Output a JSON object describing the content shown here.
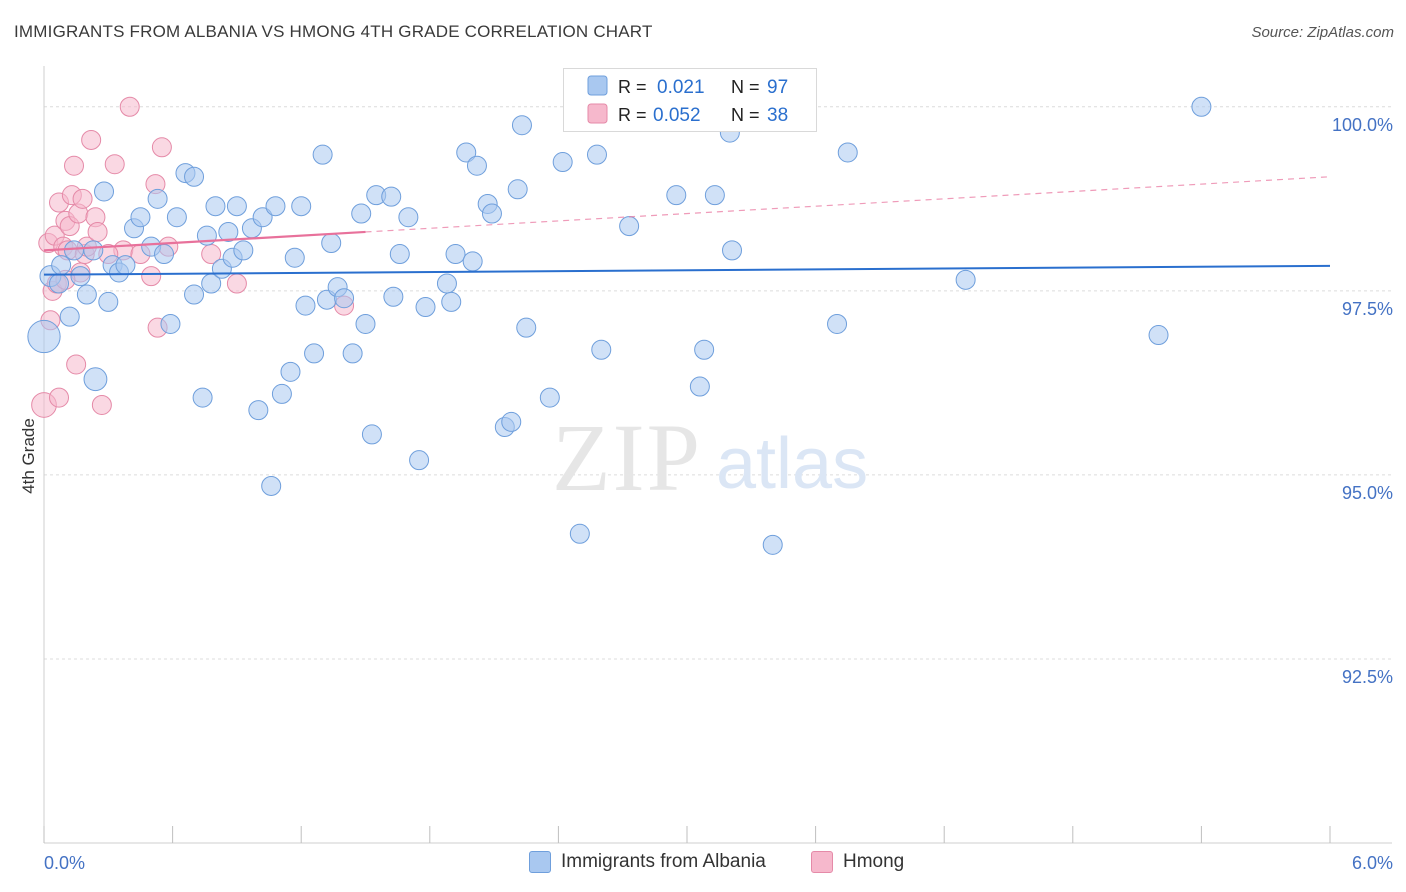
{
  "title": "IMMIGRANTS FROM ALBANIA VS HMONG 4TH GRADE CORRELATION CHART",
  "source": "Source: ZipAtlas.com",
  "watermark": {
    "zip": "ZIP",
    "atlas": "atlas"
  },
  "legend": {
    "r_label": "R =",
    "n_label": "N =",
    "series": [
      {
        "name": "Immigrants from Albania",
        "r": "0.021",
        "n": "97",
        "fill": "#a9c8f0",
        "stroke": "#6f9fdc"
      },
      {
        "name": "Hmong",
        "r": "0.052",
        "n": "38",
        "fill": "#f6b8cc",
        "stroke": "#e58aa8"
      }
    ]
  },
  "colors": {
    "blue_line": "#2a6fce",
    "pink_line": "#e8719b",
    "tick_label": "#4472c4",
    "grid": "#dcdcdc"
  },
  "chart_data": {
    "type": "scatter",
    "title": "IMMIGRANTS FROM ALBANIA VS HMONG 4TH GRADE CORRELATION CHART",
    "xlabel": "",
    "ylabel": "4th Grade",
    "xlim": [
      0.0,
      6.0
    ],
    "ylim": [
      90.0,
      100.5
    ],
    "x_tick_labels": {
      "left": "0.0%",
      "right": "6.0%"
    },
    "y_ticks": [
      92.5,
      95.0,
      97.5,
      100.0
    ],
    "y_tick_labels": [
      "92.5%",
      "95.0%",
      "97.5%",
      "100.0%"
    ],
    "series": [
      {
        "name": "Immigrants from Albania",
        "trend": {
          "x0": 0.0,
          "y0": 97.72,
          "x1": 6.0,
          "y1": 97.84,
          "solid_to": 6.0
        },
        "points": [
          [
            0.0,
            96.88,
            1.7
          ],
          [
            0.03,
            97.7,
            1.1
          ],
          [
            0.07,
            97.6,
            1.0
          ],
          [
            0.08,
            97.85,
            1.0
          ],
          [
            0.12,
            97.15,
            1.0
          ],
          [
            0.14,
            98.05,
            1.0
          ],
          [
            0.17,
            97.7,
            1.0
          ],
          [
            0.2,
            97.45,
            1.0
          ],
          [
            0.23,
            98.05,
            1.0
          ],
          [
            0.24,
            96.3,
            1.2
          ],
          [
            0.28,
            98.85,
            1.0
          ],
          [
            0.3,
            97.35,
            1.0
          ],
          [
            0.32,
            97.85,
            1.0
          ],
          [
            0.35,
            97.75,
            1.0
          ],
          [
            0.38,
            97.85,
            1.0
          ],
          [
            0.42,
            98.35,
            1.0
          ],
          [
            0.45,
            98.5,
            1.0
          ],
          [
            0.5,
            98.1,
            1.0
          ],
          [
            0.53,
            98.75,
            1.0
          ],
          [
            0.56,
            98.0,
            1.0
          ],
          [
            0.59,
            97.05,
            1.0
          ],
          [
            0.62,
            98.5,
            1.0
          ],
          [
            0.66,
            99.1,
            1.0
          ],
          [
            0.7,
            99.05,
            1.0
          ],
          [
            0.7,
            97.45,
            1.0
          ],
          [
            0.74,
            96.05,
            1.0
          ],
          [
            0.76,
            98.25,
            1.0
          ],
          [
            0.78,
            97.6,
            1.0
          ],
          [
            0.8,
            98.65,
            1.0
          ],
          [
            0.83,
            97.8,
            1.0
          ],
          [
            0.86,
            98.3,
            1.0
          ],
          [
            0.88,
            97.95,
            1.0
          ],
          [
            0.9,
            98.65,
            1.0
          ],
          [
            0.93,
            98.05,
            1.0
          ],
          [
            0.97,
            98.35,
            1.0
          ],
          [
            1.0,
            95.88,
            1.0
          ],
          [
            1.02,
            98.5,
            1.0
          ],
          [
            1.06,
            94.85,
            1.0
          ],
          [
            1.08,
            98.65,
            1.0
          ],
          [
            1.11,
            96.1,
            1.0
          ],
          [
            1.15,
            96.4,
            1.0
          ],
          [
            1.17,
            97.95,
            1.0
          ],
          [
            1.2,
            98.65,
            1.0
          ],
          [
            1.22,
            97.3,
            1.0
          ],
          [
            1.26,
            96.65,
            1.0
          ],
          [
            1.3,
            99.35,
            1.0
          ],
          [
            1.32,
            97.38,
            1.0
          ],
          [
            1.34,
            98.15,
            1.0
          ],
          [
            1.37,
            97.55,
            1.0
          ],
          [
            1.4,
            97.4,
            1.0
          ],
          [
            1.44,
            96.65,
            1.0
          ],
          [
            1.48,
            98.55,
            1.0
          ],
          [
            1.5,
            97.05,
            1.0
          ],
          [
            1.53,
            95.55,
            1.0
          ],
          [
            1.55,
            98.8,
            1.0
          ],
          [
            1.62,
            98.78,
            1.0
          ],
          [
            1.63,
            97.42,
            1.0
          ],
          [
            1.66,
            98.0,
            1.0
          ],
          [
            1.7,
            98.5,
            1.0
          ],
          [
            1.75,
            95.2,
            1.0
          ],
          [
            1.78,
            97.28,
            1.0
          ],
          [
            1.88,
            97.6,
            1.0
          ],
          [
            1.9,
            97.35,
            1.0
          ],
          [
            1.92,
            98.0,
            1.0
          ],
          [
            1.97,
            99.38,
            1.0
          ],
          [
            2.0,
            97.9,
            1.0
          ],
          [
            2.02,
            99.2,
            1.0
          ],
          [
            2.07,
            98.68,
            1.0
          ],
          [
            2.09,
            98.55,
            1.0
          ],
          [
            2.15,
            95.65,
            1.0
          ],
          [
            2.18,
            95.72,
            1.0
          ],
          [
            2.21,
            98.88,
            1.0
          ],
          [
            2.23,
            99.75,
            1.0
          ],
          [
            2.25,
            97.0,
            1.0
          ],
          [
            2.36,
            96.05,
            1.0
          ],
          [
            2.42,
            99.25,
            1.0
          ],
          [
            2.5,
            94.2,
            1.0
          ],
          [
            2.58,
            99.35,
            1.0
          ],
          [
            2.6,
            96.7,
            1.0
          ],
          [
            2.73,
            98.38,
            1.0
          ],
          [
            2.95,
            98.8,
            1.0
          ],
          [
            3.06,
            96.2,
            1.0
          ],
          [
            3.08,
            96.7,
            1.0
          ],
          [
            3.13,
            98.8,
            1.0
          ],
          [
            3.2,
            99.65,
            1.0
          ],
          [
            3.21,
            98.05,
            1.0
          ],
          [
            3.7,
            97.05,
            1.0
          ],
          [
            3.75,
            99.38,
            1.0
          ],
          [
            3.4,
            94.05,
            1.0
          ],
          [
            4.3,
            97.65,
            1.0
          ],
          [
            5.2,
            96.9,
            1.0
          ],
          [
            5.4,
            100.0,
            1.0
          ]
        ]
      },
      {
        "name": "Hmong",
        "trend": {
          "x0": 0.0,
          "y0": 98.05,
          "x1": 6.0,
          "y1": 99.05,
          "solid_to": 1.5
        },
        "points": [
          [
            0.0,
            95.95,
            1.3
          ],
          [
            0.02,
            98.15,
            1.0
          ],
          [
            0.03,
            97.1,
            1.0
          ],
          [
            0.04,
            97.5,
            1.0
          ],
          [
            0.05,
            98.25,
            1.0
          ],
          [
            0.06,
            97.6,
            1.0
          ],
          [
            0.07,
            98.7,
            1.0
          ],
          [
            0.07,
            96.05,
            1.0
          ],
          [
            0.09,
            98.1,
            1.0
          ],
          [
            0.1,
            98.45,
            1.0
          ],
          [
            0.11,
            98.05,
            1.0
          ],
          [
            0.12,
            98.38,
            1.0
          ],
          [
            0.13,
            98.8,
            1.0
          ],
          [
            0.14,
            99.2,
            1.0
          ],
          [
            0.15,
            96.5,
            1.0
          ],
          [
            0.16,
            98.55,
            1.0
          ],
          [
            0.17,
            97.75,
            1.0
          ],
          [
            0.18,
            98.75,
            1.0
          ],
          [
            0.19,
            98.0,
            1.0
          ],
          [
            0.2,
            98.1,
            1.0
          ],
          [
            0.22,
            99.55,
            1.0
          ],
          [
            0.24,
            98.5,
            1.0
          ],
          [
            0.27,
            95.95,
            1.0
          ],
          [
            0.33,
            99.22,
            1.0
          ],
          [
            0.37,
            98.05,
            1.0
          ],
          [
            0.4,
            100.0,
            1.0
          ],
          [
            0.45,
            98.0,
            1.0
          ],
          [
            0.5,
            97.7,
            1.0
          ],
          [
            0.52,
            98.95,
            1.0
          ],
          [
            0.53,
            97.0,
            1.0
          ],
          [
            0.55,
            99.45,
            1.0
          ],
          [
            0.58,
            98.1,
            1.0
          ],
          [
            0.78,
            98.0,
            1.0
          ],
          [
            0.9,
            97.6,
            1.0
          ],
          [
            1.4,
            97.3,
            1.0
          ],
          [
            0.3,
            98.0,
            1.0
          ],
          [
            0.25,
            98.3,
            1.0
          ],
          [
            0.1,
            97.65,
            1.0
          ]
        ]
      }
    ]
  }
}
